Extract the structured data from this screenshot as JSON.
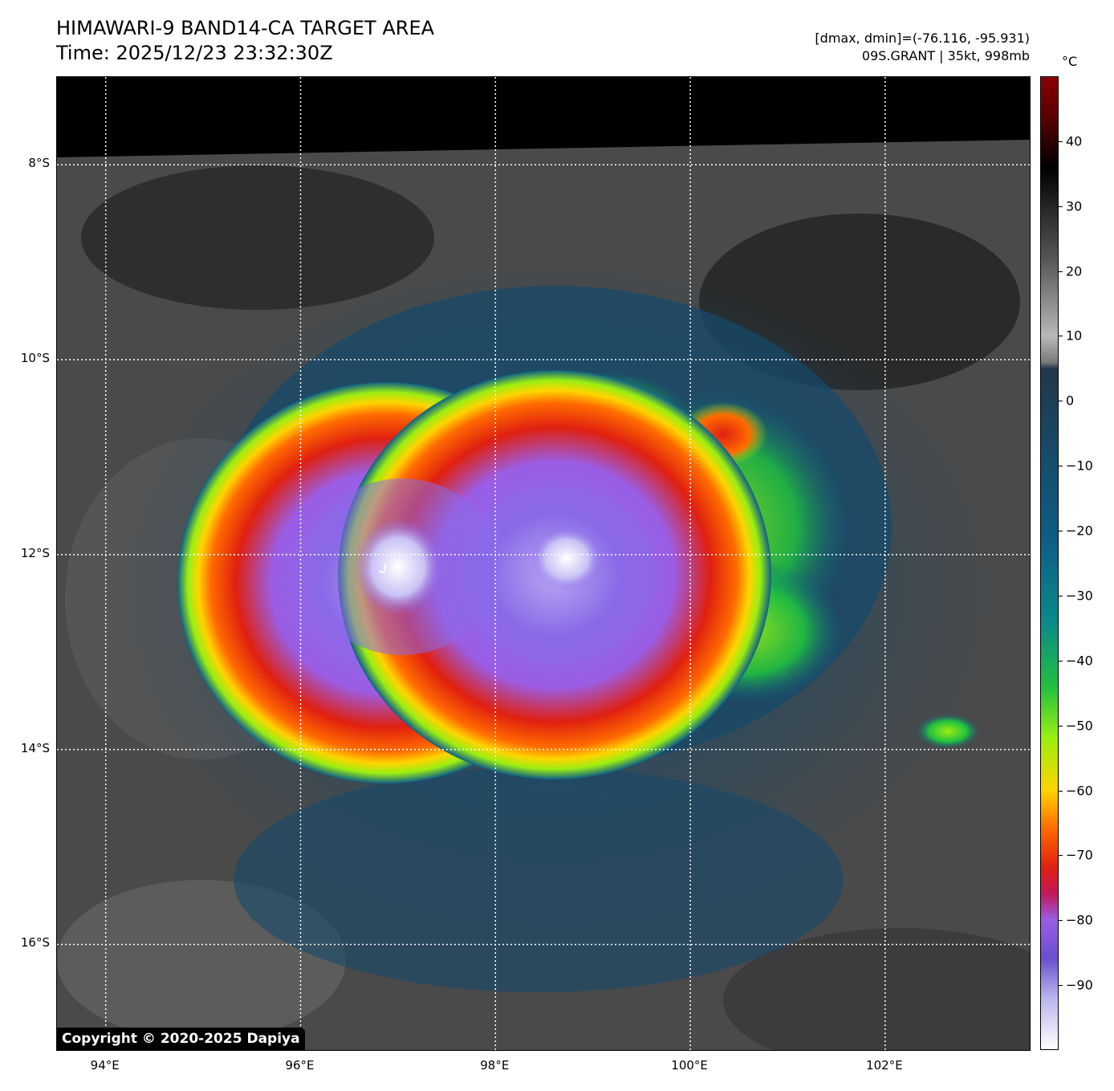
{
  "header": {
    "title_line1": "HIMAWARI-9 BAND14-CA TARGET AREA",
    "title_line2": "Time: 2025/12/23 23:32:30Z",
    "dmax_dmin": "[dmax, dmin]=(-76.116, -95.931)",
    "storm_info": "09S.GRANT | 35kt, 998mb"
  },
  "map": {
    "copyright": "Copyright © 2020-2025 Dapiya",
    "lat_labels": [
      "8°S",
      "10°S",
      "12°S",
      "14°S",
      "16°S"
    ],
    "lon_labels": [
      "94°E",
      "96°E",
      "98°E",
      "100°E",
      "102°E"
    ],
    "lat_values": [
      -8,
      -10,
      -12,
      -14,
      -16
    ],
    "lon_values": [
      94,
      96,
      98,
      100,
      102
    ],
    "lat_range": [
      -17.1,
      -7.1
    ],
    "lon_range": [
      93.5,
      103.5
    ],
    "storm_center_symbol": "tropical-storm-icon",
    "gridlines": "dotted-white"
  },
  "colorbar": {
    "unit": "°C",
    "range": [
      -100,
      50
    ],
    "ticks": [
      40,
      30,
      20,
      10,
      0,
      -10,
      -20,
      -30,
      -40,
      -50,
      -60,
      -70,
      -80,
      -90
    ],
    "tick_labels": [
      "40",
      "30",
      "20",
      "10",
      "0",
      "−10",
      "−20",
      "−30",
      "−40",
      "−50",
      "−60",
      "−70",
      "−80",
      "−90"
    ],
    "stops": [
      {
        "t": -100,
        "color": "#ffffff"
      },
      {
        "t": -92,
        "color": "#b9b3ee"
      },
      {
        "t": -86,
        "color": "#6a4fd0"
      },
      {
        "t": -80,
        "color": "#9b5de5"
      },
      {
        "t": -76,
        "color": "#c2185b"
      },
      {
        "t": -72,
        "color": "#e02010"
      },
      {
        "t": -66,
        "color": "#ff6a00"
      },
      {
        "t": -60,
        "color": "#ffd400"
      },
      {
        "t": -52,
        "color": "#9aee12"
      },
      {
        "t": -44,
        "color": "#20c040"
      },
      {
        "t": -34,
        "color": "#0a8a8a"
      },
      {
        "t": -22,
        "color": "#0e5f86"
      },
      {
        "t": -8,
        "color": "#174a6a"
      },
      {
        "t": 5,
        "color": "#20384a"
      },
      {
        "t": 6,
        "color": "#7a7a7a"
      },
      {
        "t": 10,
        "color": "#b8b8b8"
      },
      {
        "t": 22,
        "color": "#555555"
      },
      {
        "t": 36,
        "color": "#000000"
      },
      {
        "t": 44,
        "color": "#5a0000"
      },
      {
        "t": 50,
        "color": "#8b0000"
      }
    ]
  }
}
